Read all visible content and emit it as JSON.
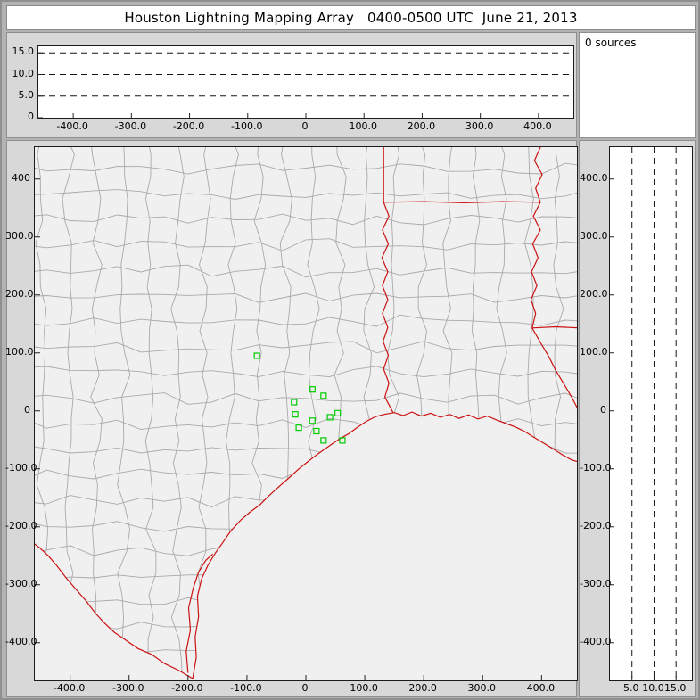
{
  "window": {
    "title": "Houston Lightning Mapping Array   0400-0500 UTC  June 21, 2013"
  },
  "top_right_panel": {
    "label": "0 sources"
  },
  "colors": {
    "frame": "#b3b3b3",
    "panel_bg": "#d8d8d8",
    "plot_bg": "#ffffff",
    "map_bg": "#f0f0f0",
    "county_line": "#a9a9a9",
    "border_line": "#cc1111",
    "station": "#00cc00",
    "dash_line": "#151515",
    "tick_mark": "#222222"
  },
  "chart_data": [
    {
      "id": "altitude-vs-ew",
      "type": "scatter",
      "description": "Altitude (km) vs East-West distance (km), no sources plotted",
      "xlim": [
        -460,
        460
      ],
      "ylim": [
        0,
        16.5
      ],
      "x_ticks": [
        "-400.0",
        "-300.0",
        "-200.0",
        "-100.0",
        "0",
        "100.0",
        "200.0",
        "300.0",
        "400.0"
      ],
      "x_tick_values": [
        -400,
        -300,
        -200,
        -100,
        0,
        100,
        200,
        300,
        400
      ],
      "y_ticks": [
        "15.0",
        "10.0",
        "5.0",
        "0"
      ],
      "y_tick_values": [
        15,
        10,
        5,
        0
      ],
      "gridlines_y": [
        5,
        10,
        15
      ],
      "grid_style": "dashed",
      "points": []
    },
    {
      "id": "source-count",
      "type": "text",
      "label": "0 sources"
    },
    {
      "id": "map",
      "type": "scatter",
      "description": "Plan view map, Texas / Louisiana Gulf coast with LMA station locations",
      "xlim": [
        -460,
        460
      ],
      "ylim": [
        -465,
        455
      ],
      "x_ticks": [
        "-400.0",
        "-300.0",
        "-200.0",
        "-100.0",
        "0",
        "100.0",
        "200.0",
        "300.0",
        "400.0"
      ],
      "x_tick_values": [
        -400,
        -300,
        -200,
        -100,
        0,
        100,
        200,
        300,
        400
      ],
      "y_ticks": [
        "400",
        "300.0",
        "200.0",
        "100.0",
        "0",
        "-100.0",
        "-200.0",
        "-300.0",
        "-400.0"
      ],
      "y_tick_values": [
        400,
        300,
        200,
        100,
        0,
        -100,
        -200,
        -300,
        -400
      ],
      "stations": [
        [
          -83,
          95
        ],
        [
          11,
          37
        ],
        [
          30,
          26
        ],
        [
          -20,
          15
        ],
        [
          -18,
          -6
        ],
        [
          11,
          -17
        ],
        [
          -12,
          -29
        ],
        [
          18,
          -35
        ],
        [
          41,
          -11
        ],
        [
          54,
          -4
        ],
        [
          62,
          -51
        ],
        [
          30,
          -51
        ]
      ],
      "coastline": [
        [
          -192,
          -462
        ],
        [
          -186,
          -425
        ],
        [
          -188,
          -390
        ],
        [
          -182,
          -355
        ],
        [
          -184,
          -320
        ],
        [
          -177,
          -290
        ],
        [
          -166,
          -266
        ],
        [
          -154,
          -246
        ],
        [
          -143,
          -230
        ],
        [
          -128,
          -208
        ],
        [
          -110,
          -188
        ],
        [
          -95,
          -175
        ],
        [
          -78,
          -162
        ],
        [
          -62,
          -146
        ],
        [
          -45,
          -130
        ],
        [
          -28,
          -115
        ],
        [
          -12,
          -100
        ],
        [
          3,
          -88
        ],
        [
          18,
          -76
        ],
        [
          32,
          -66
        ],
        [
          45,
          -57
        ],
        [
          58,
          -48
        ],
        [
          72,
          -40
        ],
        [
          88,
          -28
        ],
        [
          103,
          -18
        ],
        [
          118,
          -10
        ],
        [
          133,
          -6
        ],
        [
          150,
          -3
        ],
        [
          165,
          -8
        ],
        [
          180,
          -2
        ],
        [
          196,
          -9
        ],
        [
          212,
          -4
        ],
        [
          228,
          -11
        ],
        [
          244,
          -6
        ],
        [
          260,
          -13
        ],
        [
          276,
          -7
        ],
        [
          292,
          -14
        ],
        [
          308,
          -9
        ],
        [
          324,
          -16
        ],
        [
          340,
          -22
        ],
        [
          356,
          -28
        ],
        [
          372,
          -36
        ],
        [
          388,
          -46
        ],
        [
          404,
          -56
        ],
        [
          420,
          -66
        ],
        [
          436,
          -76
        ],
        [
          450,
          -84
        ],
        [
          462,
          -88
        ]
      ],
      "lagoon": [
        [
          -200,
          -452
        ],
        [
          -203,
          -415
        ],
        [
          -196,
          -378
        ],
        [
          -199,
          -340
        ],
        [
          -191,
          -305
        ],
        [
          -182,
          -278
        ],
        [
          -170,
          -258
        ],
        [
          -158,
          -247
        ]
      ],
      "rio_grande": [
        [
          -192,
          -462
        ],
        [
          -215,
          -448
        ],
        [
          -240,
          -436
        ],
        [
          -262,
          -420
        ],
        [
          -285,
          -410
        ],
        [
          -305,
          -396
        ],
        [
          -325,
          -382
        ],
        [
          -342,
          -366
        ],
        [
          -358,
          -348
        ],
        [
          -373,
          -328
        ],
        [
          -390,
          -308
        ],
        [
          -407,
          -288
        ],
        [
          -422,
          -268
        ],
        [
          -437,
          -250
        ],
        [
          -452,
          -236
        ],
        [
          -465,
          -226
        ]
      ],
      "state_borders": [
        [
          [
            132,
            455
          ],
          [
            132,
            360
          ]
        ],
        [
          [
            132,
            360
          ],
          [
            200,
            361
          ],
          [
            268,
            359
          ],
          [
            334,
            361
          ],
          [
            398,
            360
          ]
        ],
        [
          [
            132,
            360
          ],
          [
            141,
            336
          ],
          [
            130,
            312
          ],
          [
            140,
            288
          ],
          [
            129,
            264
          ],
          [
            139,
            240
          ],
          [
            130,
            216
          ],
          [
            139,
            192
          ],
          [
            130,
            168
          ],
          [
            139,
            144
          ],
          [
            131,
            120
          ],
          [
            140,
            96
          ],
          [
            132,
            72
          ],
          [
            141,
            48
          ],
          [
            134,
            24
          ],
          [
            148,
            -3
          ]
        ],
        [
          [
            398,
            455
          ],
          [
            388,
            432
          ],
          [
            401,
            408
          ],
          [
            390,
            384
          ],
          [
            398,
            360
          ],
          [
            386,
            336
          ],
          [
            398,
            312
          ],
          [
            385,
            288
          ],
          [
            394,
            264
          ],
          [
            383,
            240
          ],
          [
            392,
            216
          ],
          [
            382,
            192
          ],
          [
            390,
            168
          ],
          [
            384,
            143
          ]
        ],
        [
          [
            384,
            143
          ],
          [
            424,
            145
          ],
          [
            465,
            143
          ]
        ],
        [
          [
            384,
            143
          ],
          [
            398,
            118
          ],
          [
            412,
            94
          ],
          [
            424,
            70
          ],
          [
            438,
            46
          ],
          [
            452,
            22
          ],
          [
            463,
            0
          ]
        ]
      ]
    },
    {
      "id": "altitude-vs-ns",
      "type": "scatter",
      "description": "North-South distance (km) vs Altitude (km), no sources plotted",
      "xlim": [
        0,
        18.6
      ],
      "ylim": [
        -465,
        455
      ],
      "x_ticks": [
        "5.0",
        "10.0",
        "15.0"
      ],
      "x_tick_values": [
        5,
        10,
        15
      ],
      "y_ticks": [
        "400.0",
        "300.0",
        "200.0",
        "100.0",
        "0",
        "-100.0",
        "-200.0",
        "-300.0",
        "-400.0"
      ],
      "y_tick_values": [
        400,
        300,
        200,
        100,
        0,
        -100,
        -200,
        -300,
        -400
      ],
      "gridlines_x": [
        5,
        10,
        15
      ],
      "grid_style": "dashed",
      "points": []
    }
  ]
}
